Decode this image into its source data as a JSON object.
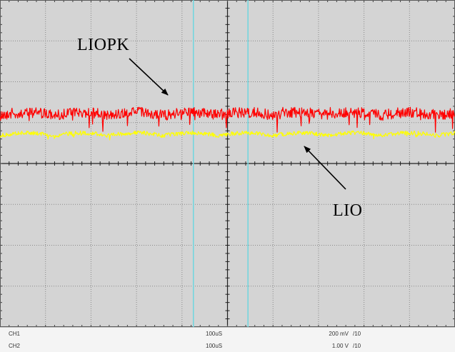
{
  "annotations": {
    "peak_label": "LIOPK",
    "avg_label": "LIO"
  },
  "colors": {
    "screen_background": "#d4d4d4",
    "grid": "#8a8a8a",
    "cursor": "#6fd6df",
    "ch1_trace": "#ff0000",
    "ch2_trace": "#ffff00"
  },
  "channels": [
    {
      "name": "CH1",
      "timebase": "100uS",
      "scale": "200 mV",
      "probe": "/10"
    },
    {
      "name": "CH2",
      "timebase": "100uS",
      "scale": "1.00 V",
      "probe": "/10"
    }
  ],
  "chart_data": {
    "type": "line",
    "grid": {
      "x_divisions": 10,
      "y_divisions": 8,
      "minor_ticks_per_division": 5
    },
    "cursors_x_div": [
      4.25,
      5.45
    ],
    "series": [
      {
        "name": "LIOPK",
        "channel": "CH1",
        "level_div": 1.18,
        "ripple_div": 0.07,
        "noise_div": 0.13,
        "ripple_period_div": 1.2
      },
      {
        "name": "LIO",
        "channel": "CH2",
        "level_div": 0.68,
        "ripple_div": 0.07,
        "noise_div": 0.05,
        "ripple_period_div": 1.2
      }
    ]
  }
}
